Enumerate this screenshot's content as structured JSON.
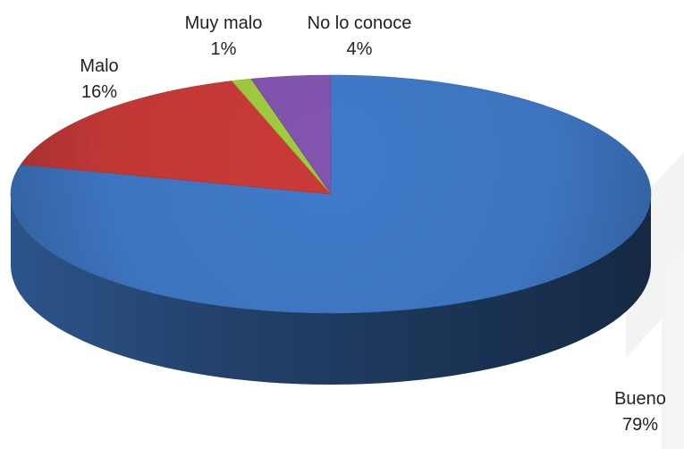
{
  "chart_data": {
    "type": "pie",
    "style": "3d",
    "slices": [
      {
        "label": "Bueno",
        "value": 79,
        "value_label": "79%",
        "color": "#3d74bf"
      },
      {
        "label": "Malo",
        "value": 16,
        "value_label": "16%",
        "color": "#c03836"
      },
      {
        "label": "Muy malo",
        "value": 1,
        "value_label": "1%",
        "color": "#9ac23c"
      },
      {
        "label": "No lo conoce",
        "value": 4,
        "value_label": "4%",
        "color": "#7c51a8"
      }
    ],
    "legend": "none"
  }
}
